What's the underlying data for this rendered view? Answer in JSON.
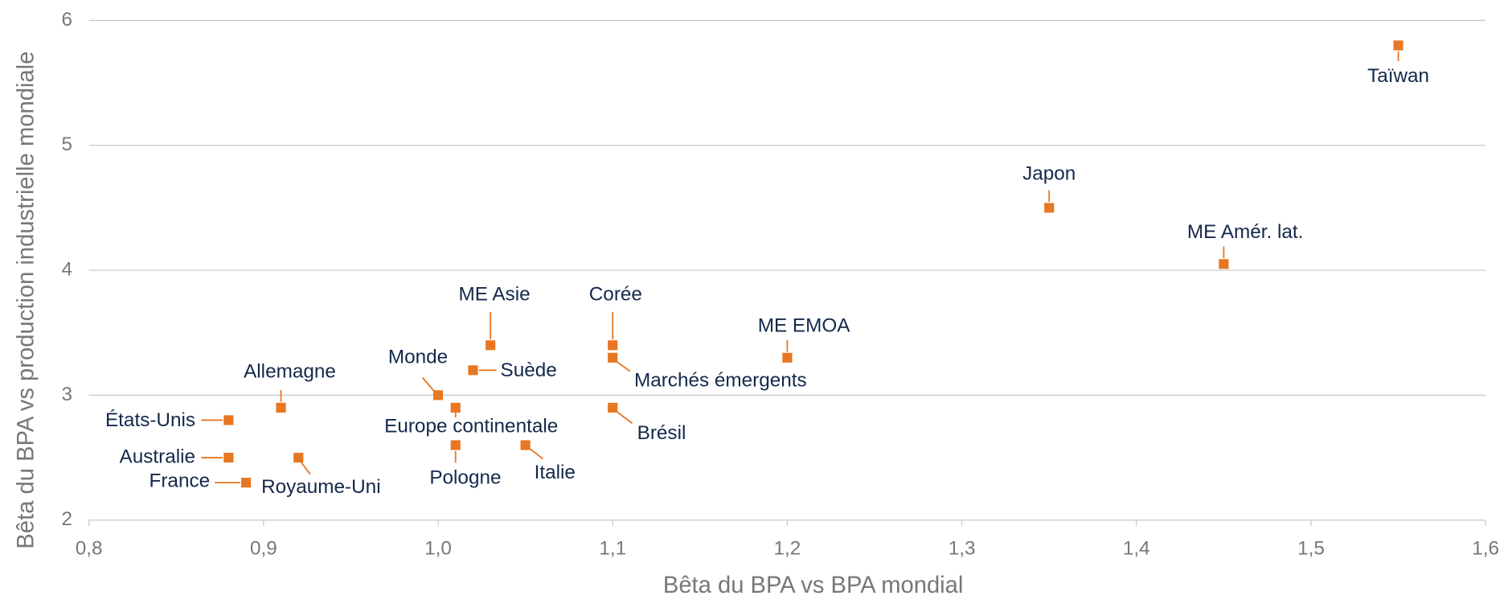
{
  "chart_data": {
    "type": "scatter",
    "xlabel": "Bêta du BPA vs BPA mondial",
    "ylabel": "Bêta du BPA vs production industrielle mondiale",
    "labels": [
      "Taïwan",
      "Japon",
      "ME Amér. lat.",
      "ME EMOA",
      "Corée",
      "Marchés émergents",
      "Brésil",
      "ME Asie",
      "Suède",
      "Monde",
      "Europe continentale",
      "Pologne",
      "Italie",
      "Allemagne",
      "États-Unis",
      "Australie",
      "France",
      "Royaume-Uni"
    ],
    "x": [
      1.55,
      1.35,
      1.45,
      1.2,
      1.1,
      1.1,
      1.1,
      1.03,
      1.02,
      1.0,
      1.01,
      1.01,
      1.05,
      0.91,
      0.88,
      0.88,
      0.89,
      0.92
    ],
    "y": [
      5.8,
      4.5,
      4.05,
      3.3,
      3.4,
      3.3,
      2.9,
      3.4,
      3.2,
      3.0,
      2.9,
      2.6,
      2.6,
      2.9,
      2.8,
      2.5,
      2.3,
      2.5
    ],
    "color": "#e87722",
    "xlim": [
      0.8,
      1.6
    ],
    "xticks": [
      {
        "value": 0.8,
        "label": "0,8"
      },
      {
        "value": 0.9,
        "label": "0,9"
      },
      {
        "value": 1.0,
        "label": "1,0"
      },
      {
        "value": 1.1,
        "label": "1,1"
      },
      {
        "value": 1.2,
        "label": "1,2"
      },
      {
        "value": 1.3,
        "label": "1,3"
      },
      {
        "value": 1.4,
        "label": "1,4"
      },
      {
        "value": 1.5,
        "label": "1,5"
      },
      {
        "value": 1.6,
        "label": "1,6"
      }
    ],
    "ylim": [
      2,
      6
    ],
    "yticks": [
      2,
      3,
      4,
      5,
      6
    ],
    "grid": true
  }
}
